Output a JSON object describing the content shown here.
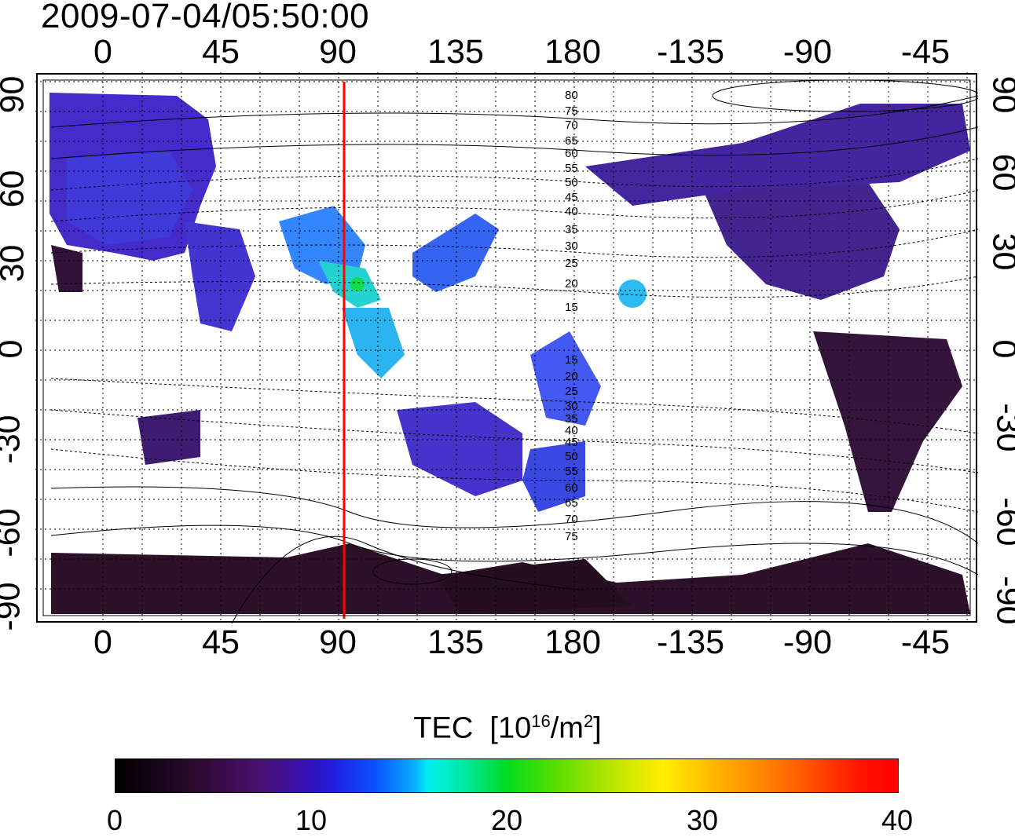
{
  "title": "2009-07-04/05:50:00",
  "lon_ticks": [
    "0",
    "45",
    "90",
    "135",
    "180",
    "-135",
    "-90",
    "-45"
  ],
  "lat_ticks": [
    "90",
    "60",
    "30",
    "0",
    "-30",
    "-60",
    "-90"
  ],
  "contour_labels": [
    "80",
    "75",
    "70",
    "65",
    "60",
    "55",
    "50",
    "45",
    "40",
    "35",
    "30",
    "25",
    "20",
    "15",
    "15",
    "20",
    "25",
    "30",
    "35",
    "40",
    "45",
    "50",
    "55",
    "60",
    "65",
    "70",
    "75"
  ],
  "meridian_lon": 92,
  "colorbar": {
    "title_main": "TEC",
    "title_unit_prefix": "[10",
    "title_exp1": "16",
    "title_unit_mid": "/m",
    "title_exp2": "2",
    "title_unit_suffix": "]",
    "ticks": [
      "0",
      "10",
      "20",
      "30",
      "40"
    ],
    "range": [
      0,
      40
    ]
  },
  "colors": {
    "meridian": "#ff0000",
    "low_tec": "#2b0a3d",
    "mid_tec": "#3b2bd9",
    "high_tec": "#00e0a0"
  }
}
